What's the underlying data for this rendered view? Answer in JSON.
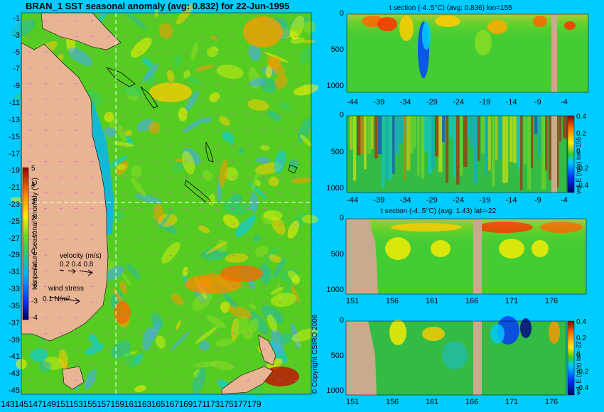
{
  "title": "BRAN_1 SST seasonal anomaly (avg: 0.832) for 22-Jun-1995",
  "copyright": "© Copyright CSIRO 2006",
  "colors": {
    "background": "#00ccff",
    "land": "#e8b494",
    "section_land": "#c8aa8c"
  },
  "chart_data": [
    {
      "type": "heatmap",
      "name": "map",
      "ylabel_ticks": [
        "-1",
        "-3",
        "-5",
        "-7",
        "-9",
        "-11",
        "-13",
        "-15",
        "-17",
        "-19",
        "-21",
        "-23",
        "-25",
        "-27",
        "-29",
        "-31",
        "-33",
        "-35",
        "-37",
        "-39",
        "-41",
        "-43",
        "-45"
      ],
      "xlabel_ticks": "143145147149151153155157159161163165167169171173175177179",
      "colorbar": {
        "label": "temperature seasonal anomaly (°C)",
        "ticks": [
          "5",
          "4",
          "3",
          "2",
          "1",
          "0",
          "-1",
          "-2",
          "-3",
          "-4"
        ],
        "range": [
          -4,
          5
        ]
      },
      "velocity_legend": {
        "label": "velocity (m/s)",
        "values": "0.2 0.4 0.8"
      },
      "wind_legend": {
        "label": "wind stress",
        "value": "0.1 N/m²"
      },
      "section_lines": {
        "lon": 155,
        "lat": -22
      }
    },
    {
      "type": "heatmap",
      "name": "t-section-lon155",
      "title": "t section (-4..5°C) (avg: 0.836) lon=155",
      "xticks": [
        "-44",
        "-39",
        "-34",
        "-29",
        "-24",
        "-19",
        "-14",
        "-9",
        "-4"
      ],
      "yticks": [
        "0",
        "500",
        "1000"
      ]
    },
    {
      "type": "heatmap",
      "name": "vel-section-lon155",
      "ylabel": "vel. E (m/s) lon=155",
      "xticks": [
        "-44",
        "-39",
        "-34",
        "-29",
        "-24",
        "-19",
        "-14",
        "-9",
        "-4"
      ],
      "yticks": [
        "0",
        "500",
        "1000"
      ],
      "colorbar_ticks": [
        "0.4",
        "0.2",
        "0",
        "-0.2",
        "-0.4"
      ]
    },
    {
      "type": "heatmap",
      "name": "t-section-lat-22",
      "title": "t section (-4..5°C) (avg: 1.43) lat=-22",
      "xticks": [
        "151",
        "156",
        "161",
        "166",
        "171",
        "176"
      ],
      "yticks": [
        "0",
        "500",
        "1000"
      ]
    },
    {
      "type": "heatmap",
      "name": "vel-section-lat-22",
      "ylabel": "vel. E (m/s) lat=-22",
      "xticks": [
        "151",
        "156",
        "161",
        "166",
        "171",
        "176"
      ],
      "yticks": [
        "0",
        "500",
        "1000"
      ],
      "colorbar_ticks": [
        "0.4",
        "0.2",
        "0",
        "-0.2",
        "-0.4"
      ]
    }
  ]
}
